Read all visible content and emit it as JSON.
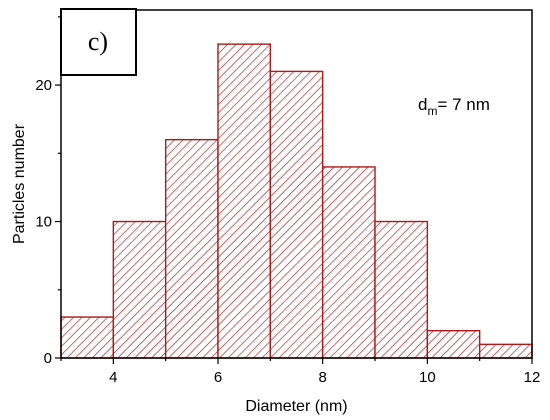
{
  "chart_data": {
    "type": "bar",
    "panel_label": "c)",
    "bins": [
      [
        3,
        4
      ],
      [
        4,
        5
      ],
      [
        5,
        6
      ],
      [
        6,
        7
      ],
      [
        7,
        8
      ],
      [
        8,
        9
      ],
      [
        9,
        10
      ],
      [
        10,
        11
      ],
      [
        11,
        12
      ]
    ],
    "values": [
      3,
      10,
      16,
      23,
      21,
      14,
      10,
      2,
      1
    ],
    "xlabel": "Diameter (nm)",
    "ylabel": "Particles number",
    "xlim": [
      3,
      12
    ],
    "ylim": [
      0,
      25.5
    ],
    "x_ticks": [
      4,
      6,
      8,
      10,
      12
    ],
    "y_ticks": [
      0,
      10,
      20
    ],
    "annotation": {
      "prefix": "d",
      "subscript": "m",
      "suffix": "= 7 nm"
    },
    "bar_color": "#b01818",
    "bar_fill": "diagonal-hatch",
    "grid": false
  }
}
